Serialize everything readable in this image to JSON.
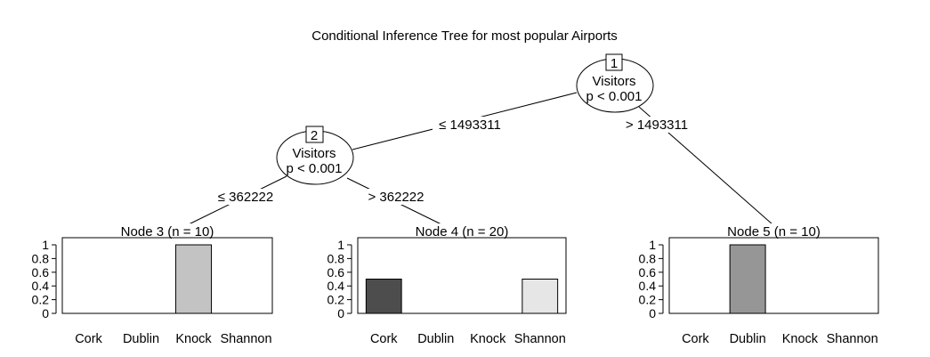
{
  "title": "Conditional Inference Tree for most popular Airports",
  "inner_nodes": [
    {
      "id": "1",
      "variable": "Visitors",
      "pvalue": "p < 0.001"
    },
    {
      "id": "2",
      "variable": "Visitors",
      "pvalue": "p < 0.001"
    }
  ],
  "edges": [
    {
      "from": "1",
      "to": "2",
      "label": "≤ 1493311"
    },
    {
      "from": "1",
      "to": "5",
      "label": "> 1493311"
    },
    {
      "from": "2",
      "to": "3",
      "label": "≤ 362222"
    },
    {
      "from": "2",
      "to": "4",
      "label": "> 362222"
    }
  ],
  "y_ticks": [
    "0",
    "0.2",
    "0.4",
    "0.6",
    "0.8",
    "1"
  ],
  "categories": [
    "Cork",
    "Dublin",
    "Knock",
    "Shannon"
  ],
  "category_colors": {
    "Cork": "#4d4d4d",
    "Dublin": "#969696",
    "Knock": "#c3c3c3",
    "Shannon": "#e6e6e6"
  },
  "chart_data": [
    {
      "type": "bar",
      "title": "Node 3 (n = 10)",
      "categories": [
        "Cork",
        "Dublin",
        "Knock",
        "Shannon"
      ],
      "values": [
        0,
        0,
        1,
        0
      ],
      "ylim": [
        0,
        1
      ]
    },
    {
      "type": "bar",
      "title": "Node 4 (n = 20)",
      "categories": [
        "Cork",
        "Dublin",
        "Knock",
        "Shannon"
      ],
      "values": [
        0.5,
        0,
        0,
        0.5
      ],
      "ylim": [
        0,
        1
      ]
    },
    {
      "type": "bar",
      "title": "Node 5 (n = 10)",
      "categories": [
        "Cork",
        "Dublin",
        "Knock",
        "Shannon"
      ],
      "values": [
        0,
        1,
        0,
        0
      ],
      "ylim": [
        0,
        1
      ]
    }
  ]
}
